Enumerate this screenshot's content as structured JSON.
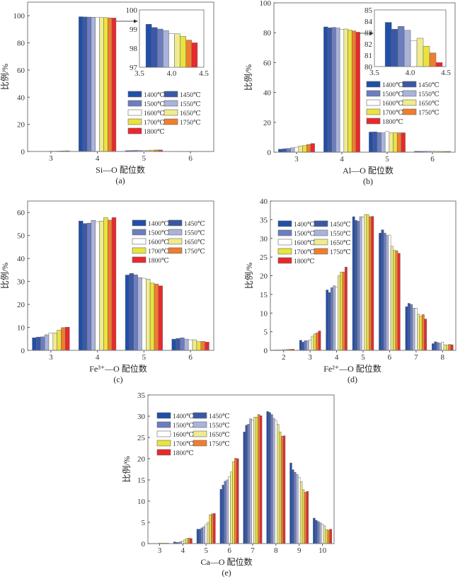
{
  "temperatures": [
    "1400℃",
    "1450℃",
    "1500℃",
    "1550℃",
    "1600℃",
    "1650℃",
    "1700℃",
    "1750℃",
    "1800℃"
  ],
  "colors": [
    "#1f4fa8",
    "#3b58a6",
    "#6c7dc0",
    "#aab3dc",
    "#ffffff",
    "#f0eb8e",
    "#e9e33e",
    "#f07d2d",
    "#e8292c"
  ],
  "chart_data": [
    {
      "type": "bar",
      "panel": "(a)",
      "xlabel": "Si—O 配位数",
      "ylabel": "比例/%",
      "ylim": [
        0,
        110
      ],
      "yticks": [
        0,
        20,
        40,
        60,
        80,
        100
      ],
      "categories": [
        "3",
        "4",
        "5",
        "6"
      ],
      "values": [
        [
          0.1,
          0.1,
          0.1,
          0.1,
          0.2,
          0.2,
          0.3,
          0.4,
          0.5
        ],
        [
          99.25,
          99.08,
          99.0,
          98.92,
          98.75,
          98.75,
          98.62,
          98.42,
          98.28
        ],
        [
          0.6,
          0.7,
          0.8,
          0.8,
          0.9,
          0.9,
          1.0,
          1.1,
          1.1
        ],
        [
          0,
          0,
          0,
          0,
          0,
          0,
          0,
          0,
          0
        ]
      ],
      "legend": "top-right",
      "inset": {
        "category": "4",
        "xlim": [
          3.5,
          4.5
        ],
        "ylim": [
          97,
          100
        ],
        "bar_x_range": [
          3.6,
          4.4
        ],
        "xticks": [
          "3.5",
          "4.0",
          "4.5"
        ],
        "yticks": [
          "97",
          "98",
          "99",
          "100"
        ]
      }
    },
    {
      "type": "bar",
      "panel": "(b)",
      "xlabel": "Al—O 配位数",
      "ylabel": "比例/%",
      "ylim": [
        0,
        100
      ],
      "yticks": [
        0,
        20,
        40,
        60,
        80,
        100
      ],
      "categories": [
        "3",
        "4",
        "5",
        "6"
      ],
      "values": [
        [
          2.0,
          2.3,
          2.5,
          3.0,
          3.3,
          4.2,
          4.5,
          5.2,
          5.8
        ],
        [
          83.9,
          83.3,
          83.55,
          83.2,
          82.3,
          82.5,
          81.8,
          81.2,
          80.35
        ],
        [
          13.5,
          13.6,
          13.2,
          13.0,
          13.8,
          13.0,
          13.0,
          13.0,
          13.0
        ],
        [
          0.6,
          0.6,
          0.6,
          0.6,
          0.7,
          0.5,
          0.5,
          0.5,
          0.5
        ]
      ],
      "legend": "right",
      "inset": {
        "category": "4",
        "xlim": [
          3.5,
          4.5
        ],
        "ylim": [
          80,
          85
        ],
        "bar_x_range": [
          3.65,
          4.45
        ],
        "xticks": [
          "3.5",
          "4.0",
          "4.5"
        ],
        "yticks": [
          "80",
          "81",
          "82",
          "83",
          "84",
          "85"
        ]
      }
    },
    {
      "type": "bar",
      "panel": "(c)",
      "xlabel": "Fe³⁺—O 配位数",
      "ylabel": "比例/%",
      "ylim": [
        0,
        65
      ],
      "yticks": [
        0,
        10,
        20,
        30,
        40,
        50,
        60
      ],
      "categories": [
        "3",
        "4",
        "5",
        "6"
      ],
      "values": [
        [
          5.5,
          5.8,
          5.9,
          6.8,
          7.6,
          7.6,
          8.8,
          9.9,
          10.1
        ],
        [
          56.3,
          55.2,
          55.4,
          56.6,
          56.0,
          56.3,
          57.8,
          56.7,
          57.8
        ],
        [
          32.8,
          33.5,
          32.9,
          31.7,
          31.4,
          31.0,
          29.3,
          28.9,
          28.1
        ],
        [
          4.9,
          5.2,
          5.5,
          4.9,
          4.6,
          4.6,
          3.8,
          3.9,
          3.6
        ]
      ],
      "legend": "top-right"
    },
    {
      "type": "bar",
      "panel": "(d)",
      "xlabel": "Fe²⁺—O 配位数",
      "ylabel": "比例/%",
      "ylim": [
        0,
        40
      ],
      "yticks": [
        0,
        5,
        10,
        15,
        20,
        25,
        30,
        35,
        40
      ],
      "categories": [
        "2",
        "3",
        "4",
        "5",
        "6",
        "7",
        "8"
      ],
      "values": [
        [
          0.1,
          0.1,
          0.1,
          0.1,
          0.2,
          0.2,
          0.3,
          0.3,
          0.3
        ],
        [
          2.7,
          2.2,
          2.6,
          2.6,
          2.7,
          3.8,
          4.4,
          4.7,
          5.2
        ],
        [
          16.2,
          15.5,
          16.8,
          17.3,
          16.9,
          20.0,
          21.0,
          21.0,
          22.3
        ],
        [
          35.8,
          34.8,
          34.6,
          35.8,
          35.7,
          36.4,
          36.4,
          35.8,
          35.9
        ],
        [
          31.4,
          32.3,
          31.4,
          30.8,
          30.9,
          27.9,
          26.8,
          26.7,
          26.0
        ],
        [
          11.7,
          12.6,
          12.3,
          11.3,
          11.3,
          9.7,
          9.2,
          9.6,
          8.4
        ],
        [
          1.8,
          2.3,
          2.1,
          1.9,
          2.2,
          1.5,
          1.4,
          1.6,
          1.5
        ]
      ],
      "legend": "top-left"
    },
    {
      "type": "bar",
      "panel": "(e)",
      "xlabel": "Ca—O 配位数",
      "ylabel": "比例/%",
      "ylim": [
        0,
        35
      ],
      "yticks": [
        0,
        5,
        10,
        15,
        20,
        25,
        30,
        35
      ],
      "categories": [
        "3",
        "4",
        "5",
        "6",
        "7",
        "8",
        "9",
        "10"
      ],
      "values": [
        [
          0.05,
          0.05,
          0.05,
          0.05,
          0.1,
          0.1,
          0.1,
          0.1,
          0.1
        ],
        [
          0.4,
          0.3,
          0.3,
          0.5,
          0.6,
          0.9,
          1.2,
          1.3,
          1.2
        ],
        [
          3.4,
          3.4,
          3.7,
          4.0,
          4.5,
          5.0,
          6.8,
          7.0,
          7.1
        ],
        [
          12.8,
          13.8,
          14.7,
          15.0,
          15.8,
          16.9,
          19.3,
          20.1,
          20.0
        ],
        [
          26.3,
          27.9,
          28.1,
          29.4,
          29.1,
          29.8,
          29.8,
          30.4,
          30.1
        ],
        [
          31.1,
          30.9,
          30.4,
          29.5,
          29.0,
          28.1,
          26.3,
          25.3,
          25.4
        ],
        [
          19.0,
          17.4,
          16.8,
          16.3,
          15.6,
          14.6,
          12.7,
          12.1,
          12.3
        ],
        [
          6.0,
          5.5,
          5.2,
          4.9,
          4.6,
          4.2,
          3.3,
          3.2,
          3.4
        ]
      ],
      "legend": "top-left"
    }
  ]
}
